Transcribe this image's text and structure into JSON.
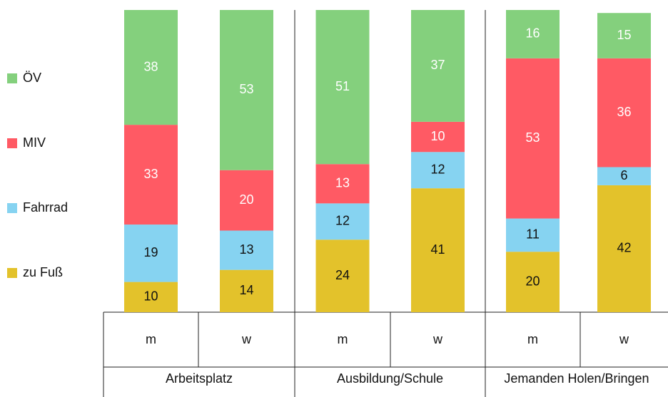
{
  "chart_data": {
    "type": "stacked_bar",
    "categories": [
      "m",
      "w",
      "m",
      "w",
      "m",
      "w"
    ],
    "groups": [
      "Arbeitsplatz",
      "Ausbildung/Schule",
      "Jemanden Holen/Bringen"
    ],
    "ylim": [
      0,
      100
    ],
    "series": [
      {
        "name": "zu Fuß",
        "color": "#e3c22b",
        "label_color": "#111111",
        "values": [
          10,
          14,
          24,
          41,
          20,
          42
        ]
      },
      {
        "name": "Fahrrad",
        "color": "#86d3f1",
        "label_color": "#111111",
        "values": [
          19,
          13,
          12,
          12,
          11,
          6
        ]
      },
      {
        "name": "MIV",
        "color": "#ff5a64",
        "label_color": "#ffffff",
        "values": [
          33,
          20,
          13,
          10,
          53,
          36
        ]
      },
      {
        "name": "ÖV",
        "color": "#84d07d",
        "label_color": "#ffffff",
        "values": [
          38,
          53,
          51,
          37,
          16,
          15
        ]
      }
    ]
  }
}
